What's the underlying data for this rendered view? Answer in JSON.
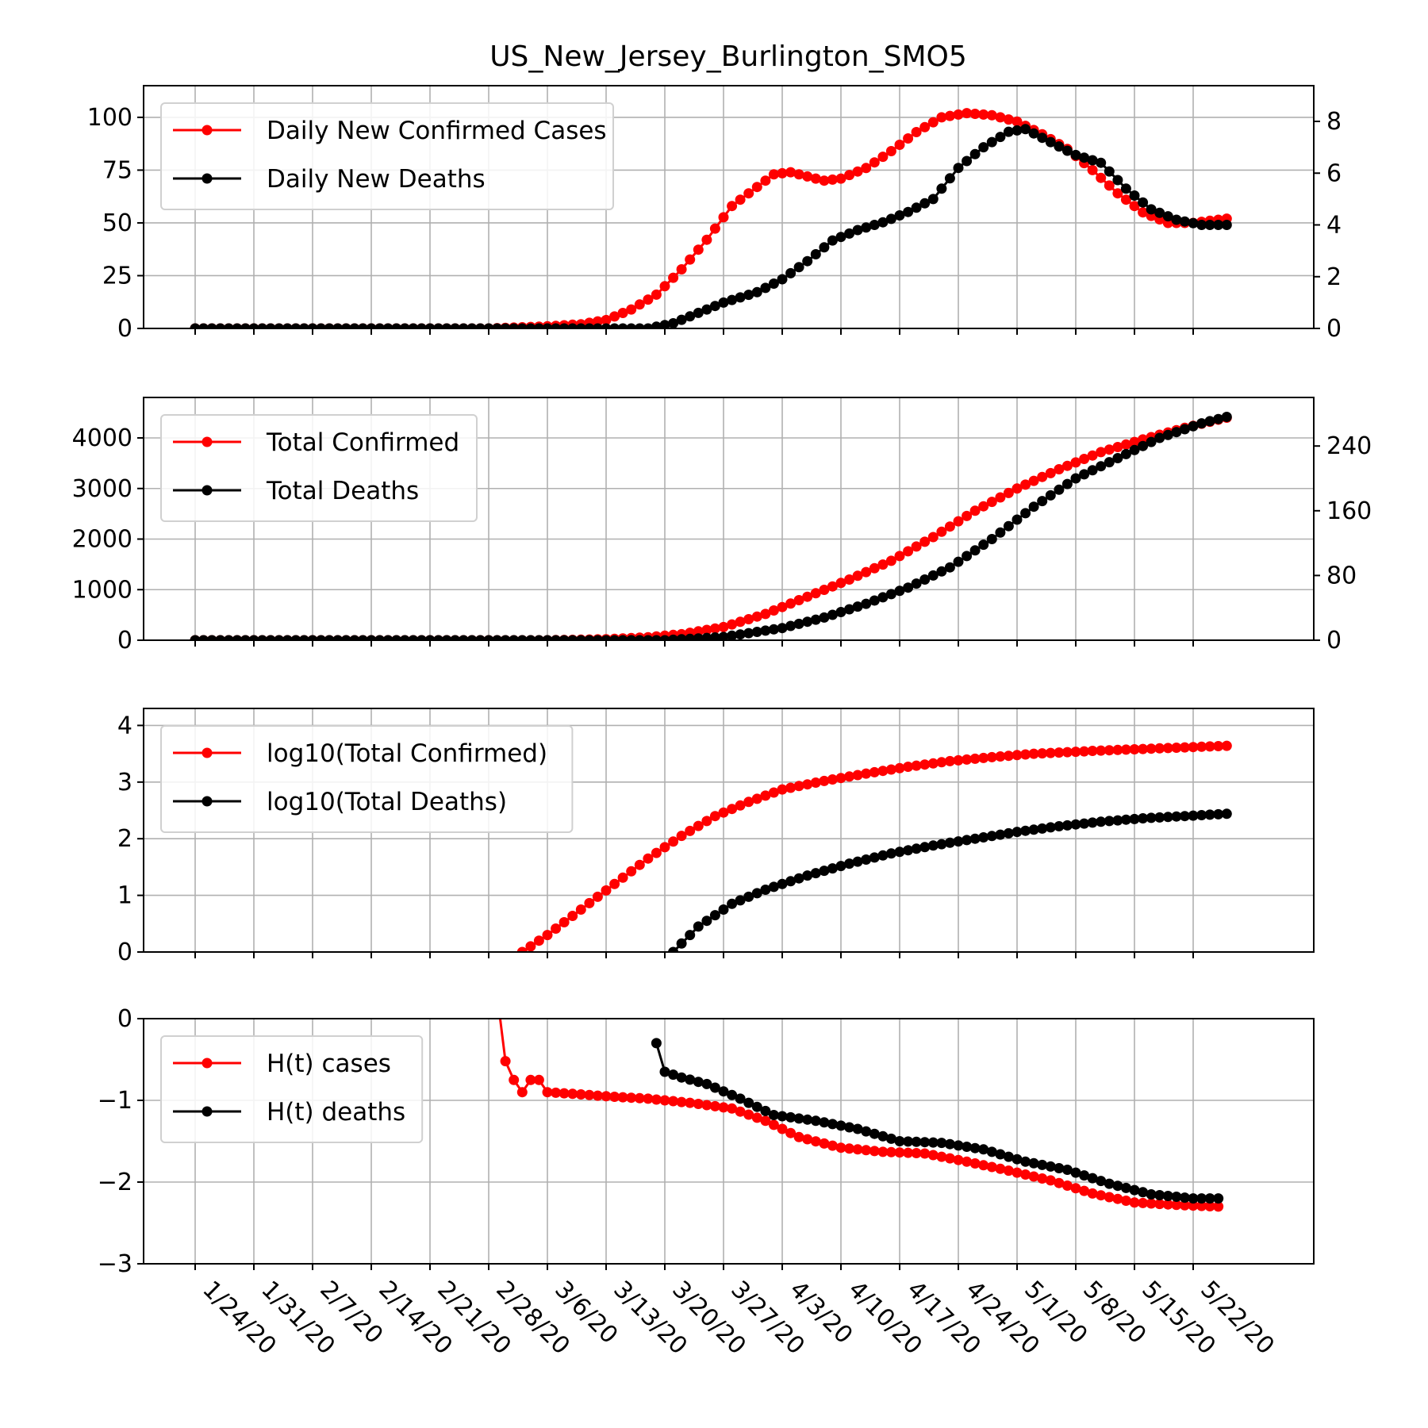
{
  "title": "US_New_Jersey_Burlington_SMO5",
  "colors": {
    "cases": "#ff0000",
    "deaths": "#000000",
    "grid": "#b0b0b0"
  },
  "chart_data": [
    {
      "type": "line",
      "x_ticks": [
        "1/24/20",
        "1/31/20",
        "2/7/20",
        "2/14/20",
        "2/21/20",
        "2/28/20",
        "3/6/20",
        "3/13/20",
        "3/20/20",
        "3/27/20",
        "4/3/20",
        "4/10/20",
        "4/17/20",
        "4/24/20",
        "5/1/20",
        "5/8/20",
        "5/15/20",
        "5/22/20"
      ],
      "x_range": [
        "1/24/20",
        "5/26/20"
      ],
      "ylim": [
        0,
        115
      ],
      "yticks": [
        "0",
        "25",
        "50",
        "75",
        "100"
      ],
      "ylim_right": [
        0,
        9.38
      ],
      "yticks_right": [
        "0",
        "2",
        "4",
        "6",
        "8"
      ],
      "legend": "upper-left",
      "grid": true,
      "series": [
        {
          "name": "Daily New Confirmed Cases",
          "axis": "left",
          "color": "#ff0000",
          "points": [
            [
              "1/24/20",
              0
            ],
            [
              "2/28/20",
              0
            ],
            [
              "3/6/20",
              1
            ],
            [
              "3/10/20",
              2
            ],
            [
              "3/13/20",
              4
            ],
            [
              "3/16/20",
              9
            ],
            [
              "3/19/20",
              16
            ],
            [
              "3/22/20",
              28
            ],
            [
              "3/25/20",
              42
            ],
            [
              "3/28/20",
              58
            ],
            [
              "3/31/20",
              67
            ],
            [
              "4/2/20",
              73
            ],
            [
              "4/4/20",
              74
            ],
            [
              "4/6/20",
              72
            ],
            [
              "4/8/20",
              70
            ],
            [
              "4/10/20",
              71
            ],
            [
              "4/13/20",
              76
            ],
            [
              "4/16/20",
              84
            ],
            [
              "4/19/20",
              93
            ],
            [
              "4/22/20",
              100
            ],
            [
              "4/25/20",
              102
            ],
            [
              "4/28/20",
              101
            ],
            [
              "5/1/20",
              98
            ],
            [
              "5/4/20",
              92
            ],
            [
              "5/7/20",
              85
            ],
            [
              "5/10/20",
              75
            ],
            [
              "5/13/20",
              64
            ],
            [
              "5/16/20",
              55
            ],
            [
              "5/19/20",
              50
            ],
            [
              "5/22/20",
              50
            ],
            [
              "5/26/20",
              52
            ]
          ]
        },
        {
          "name": "Daily New Deaths",
          "axis": "right",
          "color": "#000000",
          "points": [
            [
              "1/24/20",
              0
            ],
            [
              "3/18/20",
              0
            ],
            [
              "3/21/20",
              0.2
            ],
            [
              "3/24/20",
              0.6
            ],
            [
              "3/27/20",
              1
            ],
            [
              "3/31/20",
              1.4
            ],
            [
              "4/3/20",
              1.9
            ],
            [
              "4/6/20",
              2.6
            ],
            [
              "4/9/20",
              3.4
            ],
            [
              "4/12/20",
              3.8
            ],
            [
              "4/15/20",
              4.1
            ],
            [
              "4/18/20",
              4.5
            ],
            [
              "4/21/20",
              5
            ],
            [
              "4/24/20",
              6.2
            ],
            [
              "4/27/20",
              7
            ],
            [
              "4/30/20",
              7.6
            ],
            [
              "5/2/20",
              7.7
            ],
            [
              "5/5/20",
              7.2
            ],
            [
              "5/8/20",
              6.7
            ],
            [
              "5/11/20",
              6.4
            ],
            [
              "5/14/20",
              5.4
            ],
            [
              "5/17/20",
              4.6
            ],
            [
              "5/20/20",
              4.2
            ],
            [
              "5/23/20",
              4
            ],
            [
              "5/26/20",
              4
            ]
          ]
        }
      ]
    },
    {
      "type": "line",
      "x_ticks": [
        "1/24/20",
        "1/31/20",
        "2/7/20",
        "2/14/20",
        "2/21/20",
        "2/28/20",
        "3/6/20",
        "3/13/20",
        "3/20/20",
        "3/27/20",
        "4/3/20",
        "4/10/20",
        "4/17/20",
        "4/24/20",
        "5/1/20",
        "5/8/20",
        "5/15/20",
        "5/22/20"
      ],
      "x_range": [
        "1/24/20",
        "5/26/20"
      ],
      "ylim": [
        0,
        4800
      ],
      "yticks": [
        "0",
        "1000",
        "2000",
        "3000",
        "4000"
      ],
      "ylim_right": [
        0,
        300
      ],
      "yticks_right": [
        "0",
        "80",
        "160",
        "240"
      ],
      "legend": "upper-left",
      "grid": true,
      "series": [
        {
          "name": "Total Confirmed",
          "axis": "left",
          "color": "#ff0000",
          "points": [
            [
              "1/24/20",
              0
            ],
            [
              "3/6/20",
              0
            ],
            [
              "3/13/20",
              20
            ],
            [
              "3/18/20",
              60
            ],
            [
              "3/22/20",
              120
            ],
            [
              "3/27/20",
              260
            ],
            [
              "4/1/20",
              520
            ],
            [
              "4/6/20",
              860
            ],
            [
              "4/11/20",
              1200
            ],
            [
              "4/16/20",
              1570
            ],
            [
              "4/21/20",
              2040
            ],
            [
              "4/26/20",
              2560
            ],
            [
              "5/1/20",
              3000
            ],
            [
              "5/6/20",
              3380
            ],
            [
              "5/11/20",
              3720
            ],
            [
              "5/16/20",
              3970
            ],
            [
              "5/21/20",
              4200
            ],
            [
              "5/26/20",
              4400
            ]
          ]
        },
        {
          "name": "Total Deaths",
          "axis": "right",
          "color": "#000000",
          "points": [
            [
              "1/24/20",
              0
            ],
            [
              "3/20/20",
              0
            ],
            [
              "3/27/20",
              4
            ],
            [
              "4/3/20",
              15
            ],
            [
              "4/8/20",
              28
            ],
            [
              "4/13/20",
              45
            ],
            [
              "4/18/20",
              65
            ],
            [
              "4/23/20",
              90
            ],
            [
              "4/28/20",
              125
            ],
            [
              "5/3/20",
              165
            ],
            [
              "5/8/20",
              200
            ],
            [
              "5/13/20",
              225
            ],
            [
              "5/18/20",
              250
            ],
            [
              "5/23/20",
              268
            ],
            [
              "5/26/20",
              276
            ]
          ]
        }
      ]
    },
    {
      "type": "line",
      "x_ticks": [
        "1/24/20",
        "1/31/20",
        "2/7/20",
        "2/14/20",
        "2/21/20",
        "2/28/20",
        "3/6/20",
        "3/13/20",
        "3/20/20",
        "3/27/20",
        "4/3/20",
        "4/10/20",
        "4/17/20",
        "4/24/20",
        "5/1/20",
        "5/8/20",
        "5/15/20",
        "5/22/20"
      ],
      "x_range": [
        "1/24/20",
        "5/26/20"
      ],
      "ylim": [
        0,
        4.3
      ],
      "yticks": [
        "0",
        "1",
        "2",
        "3",
        "4"
      ],
      "legend": "upper-left",
      "grid": true,
      "series": [
        {
          "name": "log10(Total Confirmed)",
          "axis": "left",
          "color": "#ff0000",
          "points": [
            [
              "3/3/20",
              0
            ],
            [
              "3/6/20",
              0.3
            ],
            [
              "3/10/20",
              0.75
            ],
            [
              "3/14/20",
              1.2
            ],
            [
              "3/18/20",
              1.65
            ],
            [
              "3/22/20",
              2.05
            ],
            [
              "3/26/20",
              2.4
            ],
            [
              "3/30/20",
              2.65
            ],
            [
              "4/3/20",
              2.87
            ],
            [
              "4/8/20",
              3.02
            ],
            [
              "4/13/20",
              3.15
            ],
            [
              "4/18/20",
              3.27
            ],
            [
              "4/23/20",
              3.37
            ],
            [
              "4/28/20",
              3.44
            ],
            [
              "5/3/20",
              3.5
            ],
            [
              "5/10/20",
              3.55
            ],
            [
              "5/17/20",
              3.59
            ],
            [
              "5/26/20",
              3.64
            ]
          ]
        },
        {
          "name": "log10(Total Deaths)",
          "axis": "left",
          "color": "#000000",
          "points": [
            [
              "3/21/20",
              0
            ],
            [
              "3/24/20",
              0.45
            ],
            [
              "3/28/20",
              0.85
            ],
            [
              "4/1/20",
              1.1
            ],
            [
              "4/6/20",
              1.35
            ],
            [
              "4/11/20",
              1.56
            ],
            [
              "4/16/20",
              1.74
            ],
            [
              "4/21/20",
              1.88
            ],
            [
              "4/26/20",
              2.0
            ],
            [
              "5/1/20",
              2.12
            ],
            [
              "5/6/20",
              2.22
            ],
            [
              "5/11/20",
              2.3
            ],
            [
              "5/16/20",
              2.36
            ],
            [
              "5/21/20",
              2.4
            ],
            [
              "5/26/20",
              2.44
            ]
          ]
        }
      ]
    },
    {
      "type": "line",
      "x_ticks": [
        "1/24/20",
        "1/31/20",
        "2/7/20",
        "2/14/20",
        "2/21/20",
        "2/28/20",
        "3/6/20",
        "3/13/20",
        "3/20/20",
        "3/27/20",
        "4/3/20",
        "4/10/20",
        "4/17/20",
        "4/24/20",
        "5/1/20",
        "5/8/20",
        "5/15/20",
        "5/22/20"
      ],
      "x_range": [
        "1/24/20",
        "5/26/20"
      ],
      "ylim": [
        -3,
        0
      ],
      "yticks": [
        "−3",
        "−2",
        "−1",
        "0"
      ],
      "legend": "upper-left",
      "grid": true,
      "series": [
        {
          "name": "H(t) cases",
          "axis": "left",
          "color": "#ff0000",
          "points": [
            [
              "2/29/20",
              0.3
            ],
            [
              "3/1/20",
              -0.52
            ],
            [
              "3/2/20",
              -0.75
            ],
            [
              "3/3/20",
              -0.9
            ],
            [
              "3/4/20",
              -0.75
            ],
            [
              "3/5/20",
              -0.75
            ],
            [
              "3/6/20",
              -0.9
            ],
            [
              "3/9/20",
              -0.92
            ],
            [
              "3/13/20",
              -0.95
            ],
            [
              "3/18/20",
              -0.98
            ],
            [
              "3/23/20",
              -1.03
            ],
            [
              "3/28/20",
              -1.1
            ],
            [
              "4/1/20",
              -1.25
            ],
            [
              "4/5/20",
              -1.45
            ],
            [
              "4/10/20",
              -1.58
            ],
            [
              "4/15/20",
              -1.63
            ],
            [
              "4/20/20",
              -1.65
            ],
            [
              "4/25/20",
              -1.75
            ],
            [
              "4/30/20",
              -1.86
            ],
            [
              "5/5/20",
              -1.98
            ],
            [
              "5/10/20",
              -2.14
            ],
            [
              "5/15/20",
              -2.25
            ],
            [
              "5/20/20",
              -2.28
            ],
            [
              "5/25/20",
              -2.3
            ]
          ]
        },
        {
          "name": "H(t) deaths",
          "axis": "left",
          "color": "#000000",
          "points": [
            [
              "3/19/20",
              -0.3
            ],
            [
              "3/20/20",
              -0.65
            ],
            [
              "3/22/20",
              -0.72
            ],
            [
              "3/25/20",
              -0.8
            ],
            [
              "3/29/20",
              -0.98
            ],
            [
              "4/2/20",
              -1.18
            ],
            [
              "4/7/20",
              -1.25
            ],
            [
              "4/12/20",
              -1.35
            ],
            [
              "4/17/20",
              -1.5
            ],
            [
              "4/22/20",
              -1.52
            ],
            [
              "4/27/20",
              -1.6
            ],
            [
              "5/2/20",
              -1.75
            ],
            [
              "5/7/20",
              -1.85
            ],
            [
              "5/12/20",
              -2.02
            ],
            [
              "5/17/20",
              -2.15
            ],
            [
              "5/22/20",
              -2.2
            ],
            [
              "5/25/20",
              -2.2
            ]
          ]
        }
      ]
    }
  ]
}
